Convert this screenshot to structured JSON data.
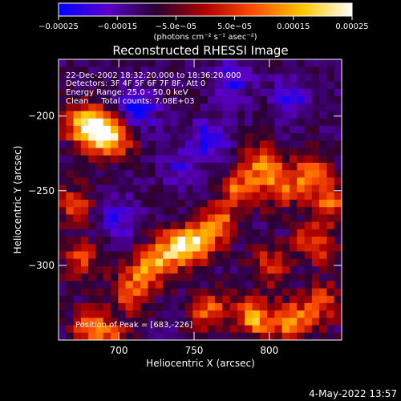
{
  "chart_data": {
    "type": "heatmap",
    "title": "Reconstructed RHESSI Image",
    "xlabel": "Heliocentric X (arcsec)",
    "ylabel": "Heliocentric Y (arcsec)",
    "xlim": [
      660,
      848
    ],
    "ylim": [
      -350,
      -162
    ],
    "x_ticks": [
      700,
      750,
      800
    ],
    "y_ticks": [
      -200,
      -250,
      -300
    ],
    "x_tick_labels": [
      "700",
      "750",
      "800"
    ],
    "y_tick_labels": [
      "−200",
      "−250",
      "−300"
    ],
    "colorbar": {
      "range": [
        -0.00025,
        0.00025
      ],
      "ticks": [
        -0.00025,
        -0.00015,
        -5e-05,
        5e-05,
        0.00015,
        0.00025
      ],
      "tick_labels": [
        "−0.00025",
        "−0.00015",
        "−5.0e−05",
        "5.0e−05",
        "0.00015",
        "0.00025"
      ],
      "units": "(photons cm⁻² s⁻¹ asec⁻²)",
      "colors": [
        "#0000ff",
        "#5a00c8",
        "#2a0030",
        "#b00000",
        "#ff5000",
        "#ffc800",
        "#ffffff"
      ]
    },
    "annotations": [
      "22-Dec-2002 18:32:20.000 to 18:36:20.000",
      "Detectors: 3F 4F 5F 6F 7F 8F, Att 0",
      "Energy Range: 25.0 - 50.0 keV",
      "Clean     Total counts: 7.08E+03"
    ],
    "peak_label": "Position of Peak = [683,-226]",
    "hotspots": [
      {
        "x": 685,
        "y": -210,
        "v": 1.0
      },
      {
        "x": 697,
        "y": -215,
        "v": 0.75
      },
      {
        "x": 673,
        "y": -203,
        "v": 0.6
      },
      {
        "x": 750,
        "y": -285,
        "v": 0.9
      },
      {
        "x": 735,
        "y": -290,
        "v": 0.75
      },
      {
        "x": 765,
        "y": -272,
        "v": 0.7
      },
      {
        "x": 720,
        "y": -302,
        "v": 0.7
      },
      {
        "x": 707,
        "y": -318,
        "v": 0.6
      },
      {
        "x": 780,
        "y": -250,
        "v": 0.65
      },
      {
        "x": 795,
        "y": -232,
        "v": 0.7
      },
      {
        "x": 808,
        "y": -248,
        "v": 0.6
      },
      {
        "x": 828,
        "y": -238,
        "v": 0.7
      },
      {
        "x": 840,
        "y": -258,
        "v": 0.6
      },
      {
        "x": 830,
        "y": -285,
        "v": 0.65
      },
      {
        "x": 800,
        "y": -300,
        "v": 0.55
      },
      {
        "x": 760,
        "y": -330,
        "v": 0.6
      },
      {
        "x": 790,
        "y": -335,
        "v": 0.8
      },
      {
        "x": 815,
        "y": -338,
        "v": 0.75
      },
      {
        "x": 835,
        "y": -325,
        "v": 0.6
      },
      {
        "x": 680,
        "y": -340,
        "v": 0.6
      },
      {
        "x": 695,
        "y": -350,
        "v": 0.5
      },
      {
        "x": 670,
        "y": -260,
        "v": 0.55
      },
      {
        "x": 675,
        "y": -295,
        "v": 0.5
      }
    ],
    "coldspots": [
      {
        "x": 712,
        "y": -195,
        "v": -0.7
      },
      {
        "x": 760,
        "y": -215,
        "v": -0.55
      },
      {
        "x": 775,
        "y": -175,
        "v": -0.5
      },
      {
        "x": 815,
        "y": -188,
        "v": -0.5
      },
      {
        "x": 700,
        "y": -268,
        "v": -0.45
      },
      {
        "x": 740,
        "y": -235,
        "v": -0.35
      }
    ]
  },
  "timestamp": "4-May-2022 13:57"
}
